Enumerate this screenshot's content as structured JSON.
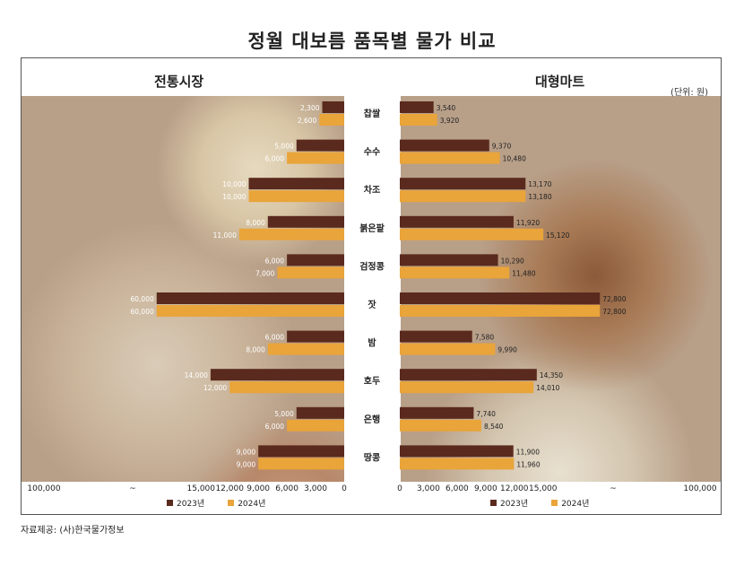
{
  "title": "정월 대보름 품목별 물가 비교",
  "unit_note": "(단위: 원)",
  "source": "자료제공: (사)한국물가정보",
  "colors": {
    "y2023": "#5a2a1e",
    "y2024": "#e9a43a"
  },
  "legend": {
    "y2023": "2023년",
    "y2024": "2024년"
  },
  "chart_data": [
    {
      "type": "bar",
      "title": "전통시장",
      "orientation": "horizontal-mirrored",
      "categories": [
        "찹쌀",
        "수수",
        "차조",
        "붉은팥",
        "검정콩",
        "잣",
        "밤",
        "호두",
        "은행",
        "땅콩"
      ],
      "series": [
        {
          "name": "2023년",
          "values": [
            2300,
            5000,
            10000,
            8000,
            6000,
            60000,
            6000,
            14000,
            5000,
            9000
          ]
        },
        {
          "name": "2024년",
          "values": [
            2600,
            6000,
            10000,
            11000,
            7000,
            60000,
            8000,
            12000,
            6000,
            9000
          ]
        }
      ],
      "value_labels": {
        "y2023": [
          "2,300",
          "5,000",
          "10,000",
          "8,000",
          "6,000",
          "60,000",
          "6,000",
          "14,000",
          "5,000",
          "9,000"
        ],
        "y2024": [
          "2,600",
          "6,000",
          "10,000",
          "11,000",
          "7,000",
          "60,000",
          "8,000",
          "12,000",
          "6,000",
          "9,000"
        ]
      },
      "axis_ticks": [
        "100,000",
        "~",
        "15,000",
        "12,000",
        "9,000",
        "6,000",
        "3,000",
        "0"
      ],
      "axis_break": "~"
    },
    {
      "type": "bar",
      "title": "대형마트",
      "orientation": "horizontal",
      "categories": [
        "찹쌀",
        "수수",
        "차조",
        "붉은팥",
        "검정콩",
        "잣",
        "밤",
        "호두",
        "은행",
        "땅콩"
      ],
      "series": [
        {
          "name": "2023년",
          "values": [
            3540,
            9370,
            13170,
            11920,
            10290,
            72800,
            7580,
            14350,
            7740,
            11900
          ]
        },
        {
          "name": "2024년",
          "values": [
            3920,
            10480,
            13180,
            15120,
            11480,
            72800,
            9990,
            14010,
            8540,
            11960
          ]
        }
      ],
      "value_labels": {
        "y2023": [
          "3,540",
          "9,370",
          "13,170",
          "11,920",
          "10,290",
          "72,800",
          "7,580",
          "14,350",
          "7,740",
          "11,900"
        ],
        "y2024": [
          "3,920",
          "10,480",
          "13,180",
          "15,120",
          "11,480",
          "72,800",
          "9,990",
          "14,010",
          "8,540",
          "11,960"
        ]
      },
      "axis_ticks": [
        "0",
        "3,000",
        "6,000",
        "9,000",
        "12,000",
        "15,000",
        "~",
        "100,000"
      ],
      "axis_break": "~"
    }
  ]
}
